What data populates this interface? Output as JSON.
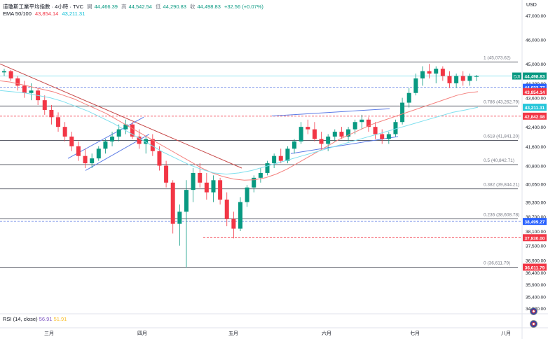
{
  "header": {
    "title": "道瓊斯工業平均指數 · 4小時 · TVC",
    "open_label": "開",
    "open": "44,466.39",
    "high_label": "高",
    "high": "44,542.54",
    "low_label": "低",
    "low": "44,290.83",
    "close_label": "收",
    "close": "44,498.83",
    "change": "+32.56 (+0.07%)",
    "ema_label": "EMA 50/100",
    "ema50": "43,854.14",
    "ema100": "43,211.31"
  },
  "rsi": {
    "label": "RSI (14, close)",
    "value": "56.91",
    "signal": "51.91"
  },
  "currency": "USD",
  "colors": {
    "up": "#089981",
    "down": "#f23645",
    "ema50": "#f4817e",
    "ema100": "#7fe0ee",
    "fib": "#5d606b",
    "trend": "#5b7be6"
  },
  "chart_data": {
    "type": "candlestick",
    "title": "道瓊斯工業平均指數 · 4小時 · TVC",
    "ylim": [
      34920,
      47000
    ],
    "y_ticks": [
      "47,000.00",
      "46,000.00",
      "45,000.00",
      "44,200.00",
      "43,600.00",
      "42,400.00",
      "41,600.00",
      "40,800.00",
      "40,050.00",
      "39,300.00",
      "38,700.00",
      "38,100.00",
      "37,500.00",
      "36,900.00",
      "36,400.00",
      "35,900.00",
      "35,400.00",
      "34,920.00"
    ],
    "x_ticks": [
      "三月",
      "四月",
      "五月",
      "六月",
      "七月",
      "八月"
    ],
    "ohlc": [
      [
        44650,
        44800,
        44500,
        44700
      ],
      [
        44700,
        44750,
        44300,
        44400
      ],
      [
        44400,
        44500,
        43900,
        44100
      ],
      [
        44100,
        44300,
        43600,
        43800
      ],
      [
        43800,
        44200,
        43500,
        43900
      ],
      [
        43900,
        44000,
        43300,
        43500
      ],
      [
        43500,
        43700,
        42900,
        43100
      ],
      [
        43100,
        43300,
        42500,
        42800
      ],
      [
        42800,
        43000,
        42200,
        42400
      ],
      [
        42400,
        42600,
        41800,
        42000
      ],
      [
        42000,
        42200,
        41400,
        41600
      ],
      [
        41600,
        41800,
        41000,
        41200
      ],
      [
        41200,
        41500,
        40700,
        40900
      ],
      [
        40900,
        41300,
        40700,
        41100
      ],
      [
        41100,
        41600,
        41000,
        41500
      ],
      [
        41500,
        41900,
        41300,
        41800
      ],
      [
        41800,
        42200,
        41600,
        42000
      ],
      [
        42000,
        42500,
        41800,
        42300
      ],
      [
        42300,
        42700,
        42100,
        42500
      ],
      [
        42500,
        42600,
        41900,
        42000
      ],
      [
        42000,
        42300,
        41500,
        41700
      ],
      [
        41700,
        42000,
        41300,
        41900
      ],
      [
        41900,
        42100,
        41200,
        41400
      ],
      [
        41400,
        41600,
        40600,
        40800
      ],
      [
        40800,
        41000,
        39900,
        40100
      ],
      [
        40100,
        40200,
        38000,
        38400
      ],
      [
        38400,
        39200,
        37500,
        38900
      ],
      [
        38900,
        40200,
        36600,
        39800
      ],
      [
        39800,
        40700,
        39300,
        40500
      ],
      [
        40500,
        40900,
        39900,
        40100
      ],
      [
        40100,
        40500,
        39400,
        39700
      ],
      [
        39700,
        40400,
        39300,
        40200
      ],
      [
        40200,
        40300,
        39200,
        39400
      ],
      [
        39400,
        39700,
        38300,
        38600
      ],
      [
        38600,
        38900,
        37800,
        38200
      ],
      [
        38200,
        39500,
        38100,
        39300
      ],
      [
        39300,
        40000,
        39100,
        39900
      ],
      [
        39900,
        40400,
        39700,
        40300
      ],
      [
        40300,
        40700,
        40100,
        40500
      ],
      [
        40500,
        41000,
        40400,
        40900
      ],
      [
        40900,
        41300,
        40700,
        41200
      ],
      [
        41200,
        41500,
        40900,
        41000
      ],
      [
        41000,
        41600,
        40900,
        41500
      ],
      [
        41500,
        41900,
        41300,
        41800
      ],
      [
        41800,
        42600,
        41700,
        42400
      ],
      [
        42400,
        42700,
        42100,
        42300
      ],
      [
        42300,
        42600,
        41800,
        41900
      ],
      [
        41900,
        42200,
        41500,
        41700
      ],
      [
        41700,
        42100,
        41400,
        42000
      ],
      [
        42000,
        42300,
        41800,
        42200
      ],
      [
        42200,
        42400,
        41900,
        42000
      ],
      [
        42000,
        42400,
        41800,
        42300
      ],
      [
        42300,
        42700,
        42100,
        42600
      ],
      [
        42600,
        42900,
        42300,
        42700
      ],
      [
        42700,
        42800,
        42200,
        42400
      ],
      [
        42400,
        42600,
        41900,
        42100
      ],
      [
        42100,
        42300,
        41700,
        41900
      ],
      [
        41900,
        42200,
        41700,
        42100
      ],
      [
        42100,
        42700,
        42000,
        42600
      ],
      [
        42600,
        43600,
        42500,
        43400
      ],
      [
        43400,
        44000,
        43200,
        43800
      ],
      [
        43800,
        44600,
        43700,
        44400
      ],
      [
        44400,
        44900,
        44100,
        44700
      ],
      [
        44700,
        45000,
        44400,
        44600
      ],
      [
        44600,
        44900,
        44200,
        44800
      ],
      [
        44800,
        44900,
        44300,
        44500
      ],
      [
        44500,
        44700,
        44000,
        44200
      ],
      [
        44200,
        44600,
        44000,
        44500
      ],
      [
        44500,
        44700,
        44100,
        44300
      ],
      [
        44300,
        44600,
        44100,
        44500
      ],
      [
        44466,
        44542,
        44290,
        44498
      ]
    ],
    "ema50": [
      44300,
      44250,
      44150,
      44050,
      43950,
      43850,
      43700,
      43550,
      43350,
      43150,
      42950,
      42700,
      42450,
      42200,
      41950,
      41700,
      41450,
      41200,
      40950,
      40700,
      40500,
      40350,
      40250,
      40200,
      40220,
      40300,
      40450,
      40650,
      40900,
      41150,
      41400,
      41650,
      41900,
      42100,
      42300,
      42500,
      42650,
      42800,
      42950,
      43100,
      43250,
      43400,
      43550,
      43700,
      43800,
      43854
    ],
    "ema100": [
      43900,
      43850,
      43800,
      43700,
      43600,
      43450,
      43250,
      43050,
      42800,
      42550,
      42250,
      41950,
      41650,
      41350,
      41100,
      40850,
      40650,
      40500,
      40450,
      40500,
      40600,
      40750,
      40900,
      41050,
      41200,
      41350,
      41500,
      41650,
      41800,
      41950,
      42100,
      42250,
      42400,
      42550,
      42700,
      42850,
      43000,
      43100,
      43211
    ],
    "fib_levels": [
      {
        "label": "1 (45,073.62)",
        "value": 45073.62
      },
      {
        "label": "0.786 (43,262.79)",
        "value": 43262.79
      },
      {
        "label": "0.618 (41,841.20)",
        "value": 41841.2
      },
      {
        "label": "0.5 (40,842.71)",
        "value": 40842.71
      },
      {
        "label": "0.382 (39,844.21)",
        "value": 39844.21
      },
      {
        "label": "0.236 (38,608.78)",
        "value": 38608.78
      },
      {
        "label": "0 (36,611.79)",
        "value": 36611.79
      }
    ],
    "price_labels": [
      {
        "text": "44,498.83",
        "value": 44498.83,
        "color": "#089981",
        "prefix": "DJI"
      },
      {
        "text": "44,033.77",
        "value": 44033.77,
        "color": "#2962ff"
      },
      {
        "text": "43,854.14",
        "value": 43854.14,
        "color": "#f23645"
      },
      {
        "text": "43,211.31",
        "value": 43211.31,
        "color": "#26c6da"
      },
      {
        "text": "42,842.98",
        "value": 42842.98,
        "color": "#f23645"
      },
      {
        "text": "38,499.27",
        "value": 38499.27,
        "color": "#2962ff"
      },
      {
        "text": "37,830.00",
        "value": 37830.0,
        "color": "#f23645"
      },
      {
        "text": "36,611.79",
        "value": 36611.79,
        "color": "#f23645"
      }
    ]
  }
}
